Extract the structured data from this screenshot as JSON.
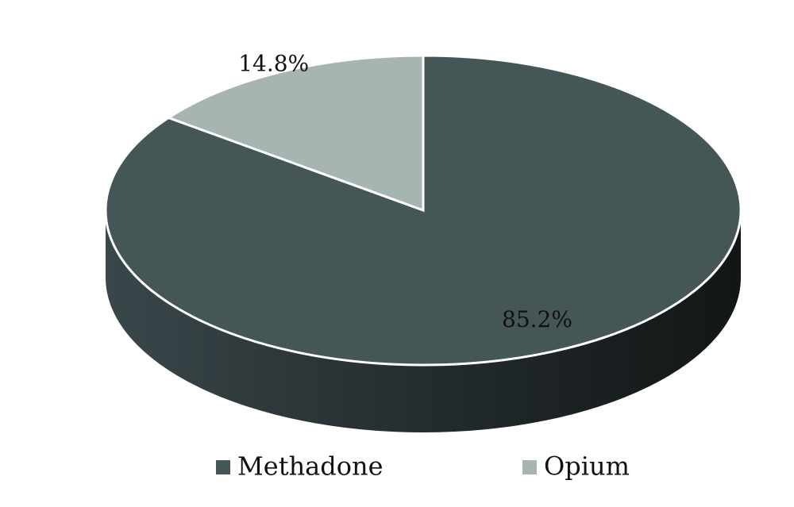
{
  "chart_data": {
    "type": "pie",
    "categories": [
      "Methadone",
      "Opium"
    ],
    "values": [
      85.2,
      14.8
    ],
    "value_labels": [
      "85.2%",
      "14.8%"
    ],
    "colors": [
      "#445655",
      "#a6b5b2"
    ]
  }
}
